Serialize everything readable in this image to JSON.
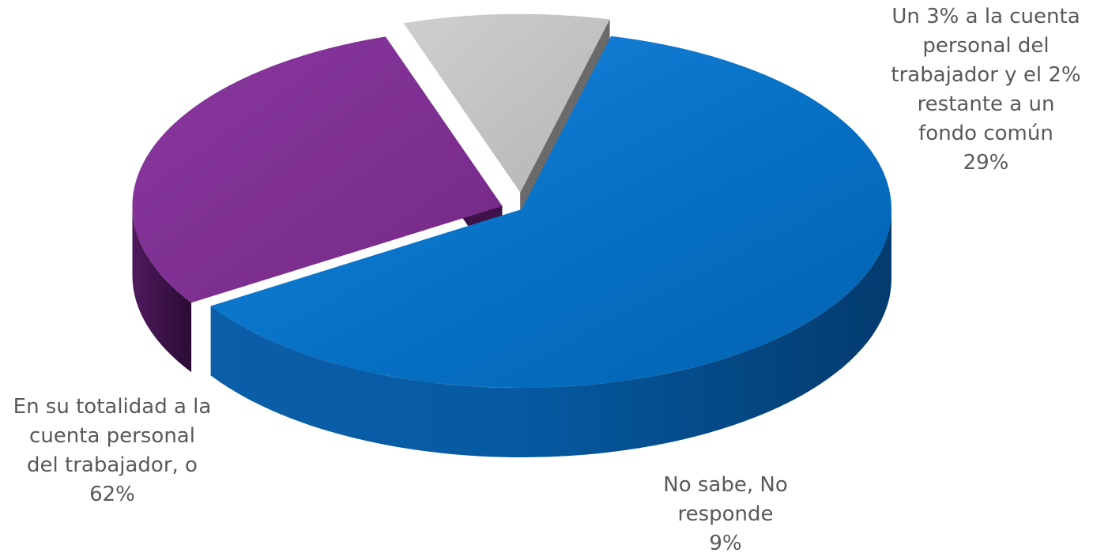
{
  "chart_data": {
    "type": "pie",
    "style": "3d-exploded",
    "title": "",
    "slices": [
      {
        "label": "En su totalidad a la cuenta personal del trabajador, o",
        "label_lines": [
          "En su totalidad a la",
          "cuenta personal",
          "del trabajador, o"
        ],
        "value": 62,
        "percent_label": "62%",
        "color": "#0570C4"
      },
      {
        "label": "Un 3% a la cuenta personal del trabajador y el 2% restante a un fondo común",
        "label_lines": [
          "Un 3% a la cuenta",
          "personal del",
          "trabajador y el 2%",
          "restante a un",
          "fondo común"
        ],
        "value": 29,
        "percent_label": "29%",
        "color": "#7B2D8C"
      },
      {
        "label": "No sabe, No responde",
        "label_lines": [
          "No sabe, No",
          "responde"
        ],
        "value": 9,
        "percent_label": "9%",
        "color": "#BFBFBF"
      }
    ],
    "legend": "none",
    "data_labels": "category-and-percent"
  }
}
